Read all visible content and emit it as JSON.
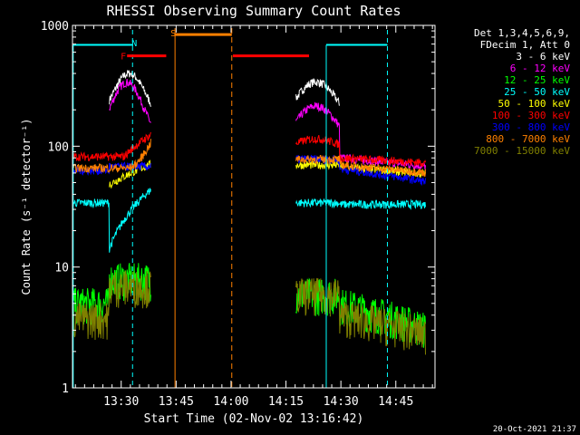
{
  "chart_data": {
    "type": "line",
    "title": "RHESSI Observing Summary Count Rates",
    "xlabel": "Start Time (02-Nov-02 13:16:42)",
    "ylabel": "Count Rate (s⁻¹ detector⁻¹)",
    "yscale": "log",
    "ylim": [
      1,
      1000
    ],
    "xlim_minutes_from_start": [
      0,
      99
    ],
    "y_ticks": [
      "1",
      "10",
      "100",
      "1000"
    ],
    "x_ticks": [
      {
        "label": "13:30",
        "minutes": 13.3
      },
      {
        "label": "13:45",
        "minutes": 28.3
      },
      {
        "label": "14:00",
        "minutes": 43.3
      },
      {
        "label": "14:15",
        "minutes": 58.3
      },
      {
        "label": "14:30",
        "minutes": 73.3
      },
      {
        "label": "14:45",
        "minutes": 88.3
      }
    ],
    "legend_header": [
      "Det 1,3,4,5,6,9,",
      "FDecim 1, Att 0"
    ],
    "legend_placement": "right",
    "series": [
      {
        "name": "3 - 6 keV",
        "color": "#ffffff"
      },
      {
        "name": "6 - 12 keV",
        "color": "#ff00ff"
      },
      {
        "name": "12 - 25 keV",
        "color": "#00ff00"
      },
      {
        "name": "25 - 50 keV",
        "color": "#00ffff"
      },
      {
        "name": "50 - 100 keV",
        "color": "#ffff00"
      },
      {
        "name": "100 - 300 keV",
        "color": "#ff0000"
      },
      {
        "name": "300 - 800 keV",
        "color": "#0000ff"
      },
      {
        "name": "800 - 7000 keV",
        "color": "#ff8000"
      },
      {
        "name": "7000 - 15000 keV",
        "color": "#808000"
      }
    ],
    "flag_bars": [
      {
        "label": "N",
        "color": "#00ffff"
      },
      {
        "label": "F",
        "color": "#ff0000"
      },
      {
        "label": "S",
        "color": "#ff8000"
      }
    ],
    "timestamp": "20-Oct-2021 21:37"
  }
}
